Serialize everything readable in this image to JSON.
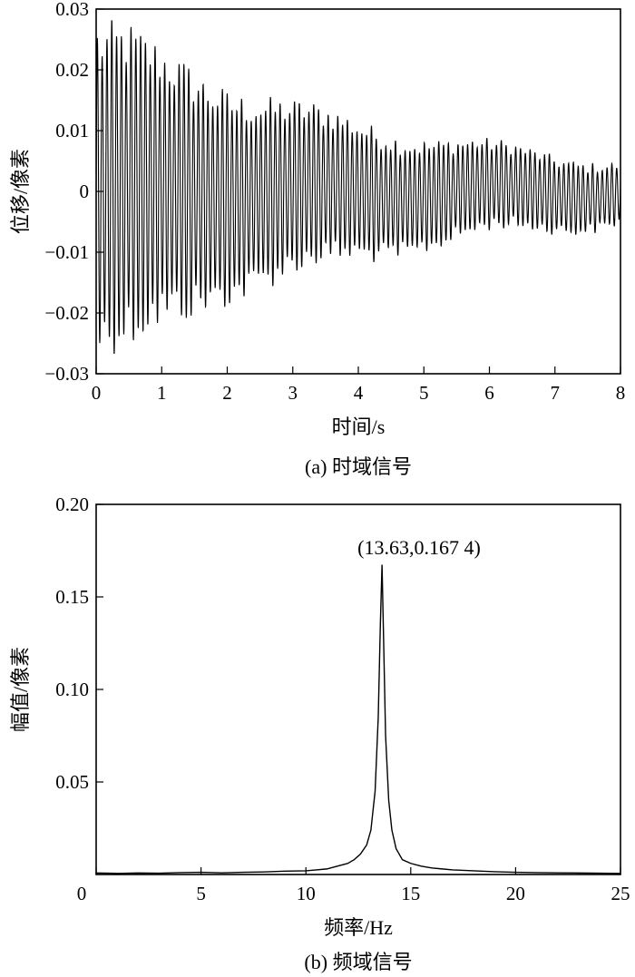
{
  "chart_data": [
    {
      "type": "line",
      "caption": "(a) 时域信号",
      "xlabel": "时间/s",
      "ylabel": "位移/像素",
      "xlim": [
        0,
        8
      ],
      "ylim": [
        -0.03,
        0.03
      ],
      "xticks": [
        0,
        1,
        2,
        3,
        4,
        5,
        6,
        7,
        8
      ],
      "xtick_labels": [
        "0",
        "1",
        "2",
        "3",
        "4",
        "5",
        "6",
        "7",
        "8"
      ],
      "yticks": [
        0.03,
        0.02,
        0.01,
        0,
        -0.01,
        -0.02,
        -0.03
      ],
      "ytick_labels": [
        "0.03",
        "0.02",
        "0.01",
        "0",
        "−0.01",
        "−0.02",
        "−0.03"
      ],
      "grid": false,
      "series": [
        {
          "signal": "decaying oscillation",
          "frequency_hz": 13.63,
          "envelope_t": [
            0,
            0.5,
            1,
            2,
            3,
            4,
            5,
            6,
            7,
            8
          ],
          "envelope_amplitude": [
            0.025,
            0.024,
            0.021,
            0.016,
            0.013,
            0.0105,
            0.0085,
            0.0068,
            0.0058,
            0.0048
          ]
        }
      ]
    },
    {
      "type": "line",
      "caption": "(b) 频域信号",
      "xlabel": "频率/Hz",
      "ylabel": "幅值/像素",
      "xlim": [
        0,
        25
      ],
      "ylim": [
        0,
        0.2
      ],
      "xticks": [
        0,
        5,
        10,
        15,
        20,
        25
      ],
      "xtick_labels": [
        "0",
        "5",
        "10",
        "15",
        "20",
        "25"
      ],
      "yticks": [
        0.2,
        0.15,
        0.1,
        0.05
      ],
      "ytick_labels": [
        "0.20",
        "0.15",
        "0.10",
        "0.05"
      ],
      "grid": false,
      "annotation": {
        "text": "(13.63,0.167 4)",
        "x": 13.63,
        "y": 0.1674
      },
      "series": [
        {
          "x": [
            0,
            1,
            2,
            3,
            4,
            5,
            6,
            7,
            8,
            9,
            10,
            10.5,
            11,
            11.5,
            12,
            12.3,
            12.6,
            12.9,
            13.1,
            13.3,
            13.45,
            13.55,
            13.63,
            13.7,
            13.8,
            13.95,
            14.1,
            14.3,
            14.6,
            15,
            15.5,
            16,
            16.5,
            17,
            18,
            19,
            20,
            21,
            22,
            23,
            24,
            25
          ],
          "y": [
            0.0008,
            0.0006,
            0.0008,
            0.0007,
            0.001,
            0.0012,
            0.0009,
            0.0012,
            0.0014,
            0.0018,
            0.002,
            0.0025,
            0.003,
            0.0045,
            0.006,
            0.008,
            0.011,
            0.016,
            0.024,
            0.045,
            0.085,
            0.135,
            0.1674,
            0.13,
            0.075,
            0.04,
            0.024,
            0.014,
            0.008,
            0.006,
            0.0045,
            0.0035,
            0.003,
            0.0025,
            0.002,
            0.0015,
            0.0012,
            0.001,
            0.0009,
            0.0008,
            0.0007,
            0.0006
          ]
        }
      ]
    }
  ]
}
